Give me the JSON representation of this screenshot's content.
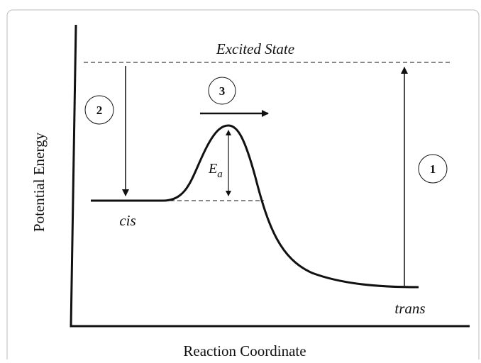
{
  "diagram": {
    "y_axis_label": "Potential Energy",
    "x_axis_label": "Reaction Coordinate",
    "excited_state": "Excited State",
    "cis": "cis",
    "trans": "trans",
    "activation_energy": {
      "main": "E",
      "sub": "a"
    },
    "steps": [
      "1",
      "2",
      "3"
    ]
  }
}
